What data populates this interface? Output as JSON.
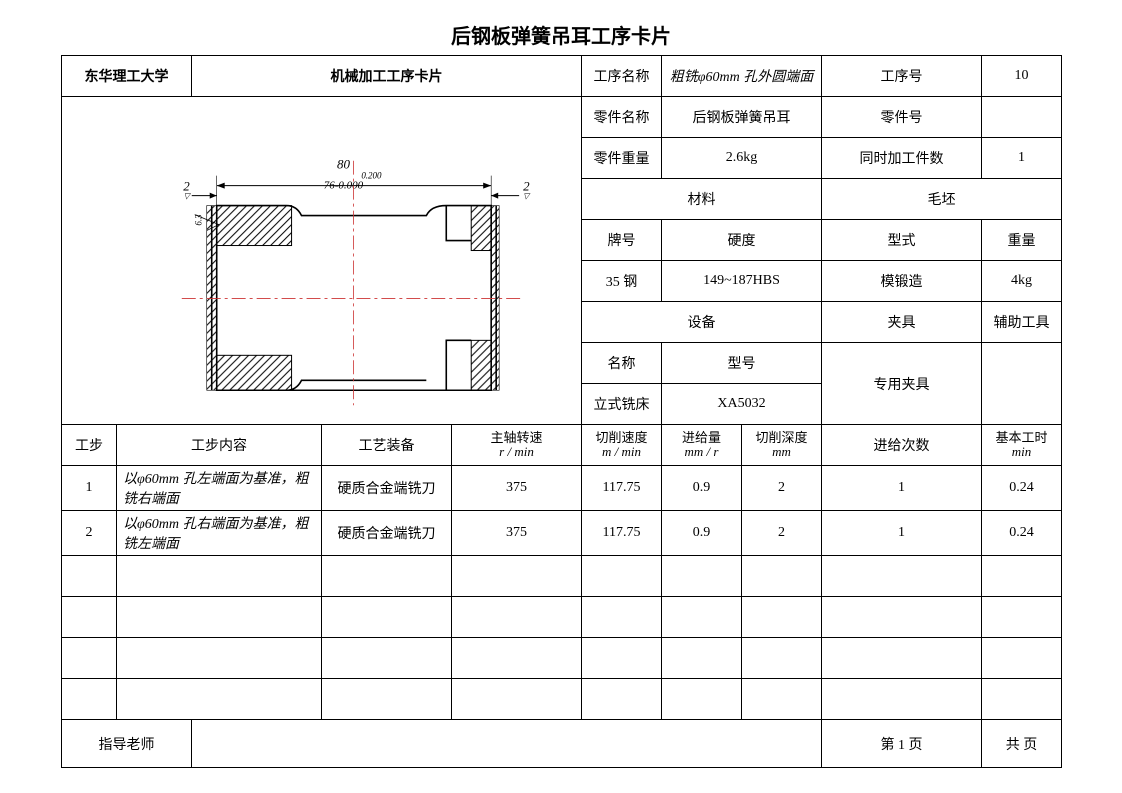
{
  "title": "后钢板弹簧吊耳工序卡片",
  "header": {
    "school": "东华理工大学",
    "card_type": "机械加工工序卡片",
    "proc_name_label": "工序名称",
    "proc_name_value": "粗铣φ60mm 孔外圆端面",
    "proc_no_label": "工序号",
    "proc_no_value": "10",
    "part_name_label": "零件名称",
    "part_name_value": "后钢板弹簧吊耳",
    "part_no_label": "零件号",
    "part_no_value": "",
    "part_weight_label": "零件重量",
    "part_weight_value": "2.6kg",
    "concurrent_label": "同时加工件数",
    "concurrent_value": "1",
    "material_label": "材料",
    "blank_label": "毛坯",
    "grade_label": "牌号",
    "hardness_label": "硬度",
    "form_label": "型式",
    "weight_label": "重量",
    "grade_value": "35 钢",
    "hardness_value": "149~187HBS",
    "form_value": "模锻造",
    "weight_value": "4kg",
    "equipment_label": "设备",
    "fixture_label": "夹具",
    "aux_tool_label": "辅助工具",
    "equip_name_label": "名称",
    "equip_model_label": "型号",
    "special_fixture": "专用夹具",
    "equip_name_value": "立式铣床",
    "equip_model_value": "XA5032"
  },
  "steps_header": {
    "step_no": "工步",
    "step_content": "工步内容",
    "tooling": "工艺装备",
    "spindle_speed": "主轴转速",
    "spindle_unit": "r / min",
    "cut_speed": "切削速度",
    "cut_speed_unit": "m / min",
    "feed": "进给量",
    "feed_unit": "mm / r",
    "cut_depth": "切削深度",
    "cut_depth_unit": "mm",
    "feed_count": "进给次数",
    "basic_time": "基本工时",
    "basic_time_unit": "min"
  },
  "steps": [
    {
      "no": "1",
      "content": "以φ60mm 孔左端面为基准，粗铣右端面",
      "tool": "硬质合金端铣刀",
      "spindle": "375",
      "cut_speed": "117.75",
      "feed": "0.9",
      "depth": "2",
      "count": "1",
      "time": "0.24"
    },
    {
      "no": "2",
      "content": "以φ60mm 孔右端面为基准，粗铣左端面",
      "tool": "硬质合金端铣刀",
      "spindle": "375",
      "cut_speed": "117.75",
      "feed": "0.9",
      "depth": "2",
      "count": "1",
      "time": "0.24"
    }
  ],
  "footer": {
    "teacher_label": "指导老师",
    "page_current": "第 1 页",
    "page_total": "共   页"
  },
  "diagram": {
    "dim_top": "80",
    "dim_tol_upper": "0.200",
    "dim_mid": "76-0.000",
    "side_dim_left": "2",
    "side_dim_right": "2",
    "roughness": "6.3"
  },
  "styling": {
    "border_color": "#000000",
    "background": "#ffffff",
    "hatch_color": "#000000",
    "centerline_color": "#cc3333",
    "font_main": "SimSun",
    "title_fontsize": 20,
    "cell_fontsize": 14
  }
}
